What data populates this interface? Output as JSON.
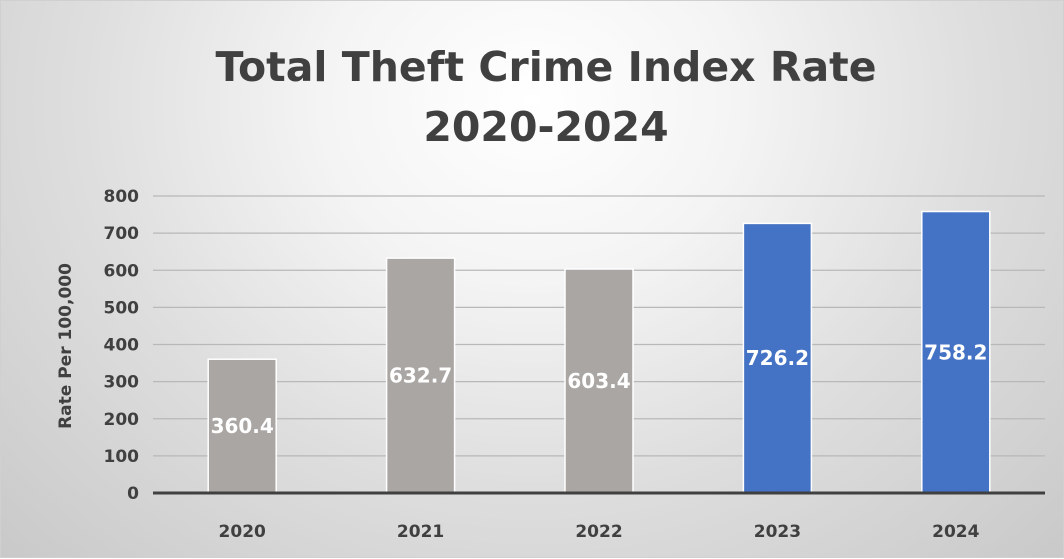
{
  "chart_data": {
    "type": "bar",
    "title": "Total Theft Crime Index Rate 2020-2024",
    "xlabel": "",
    "ylabel": "Rate Per 100,000",
    "categories": [
      "2020",
      "2021",
      "2022",
      "2023",
      "2024"
    ],
    "values": [
      360.4,
      632.7,
      603.4,
      726.2,
      758.2
    ],
    "data_labels": [
      "360.4",
      "632.7",
      "603.4",
      "726.2",
      "758.2"
    ],
    "bar_colors": [
      "#aaa6a4",
      "#aaa6a4",
      "#aaa6a4",
      "#4472c4",
      "#4472c4"
    ],
    "yticks": [
      "0",
      "100",
      "200",
      "300",
      "400",
      "500",
      "600",
      "700",
      "800"
    ],
    "ylim": [
      0,
      800
    ],
    "grid": true,
    "legend": "none"
  }
}
